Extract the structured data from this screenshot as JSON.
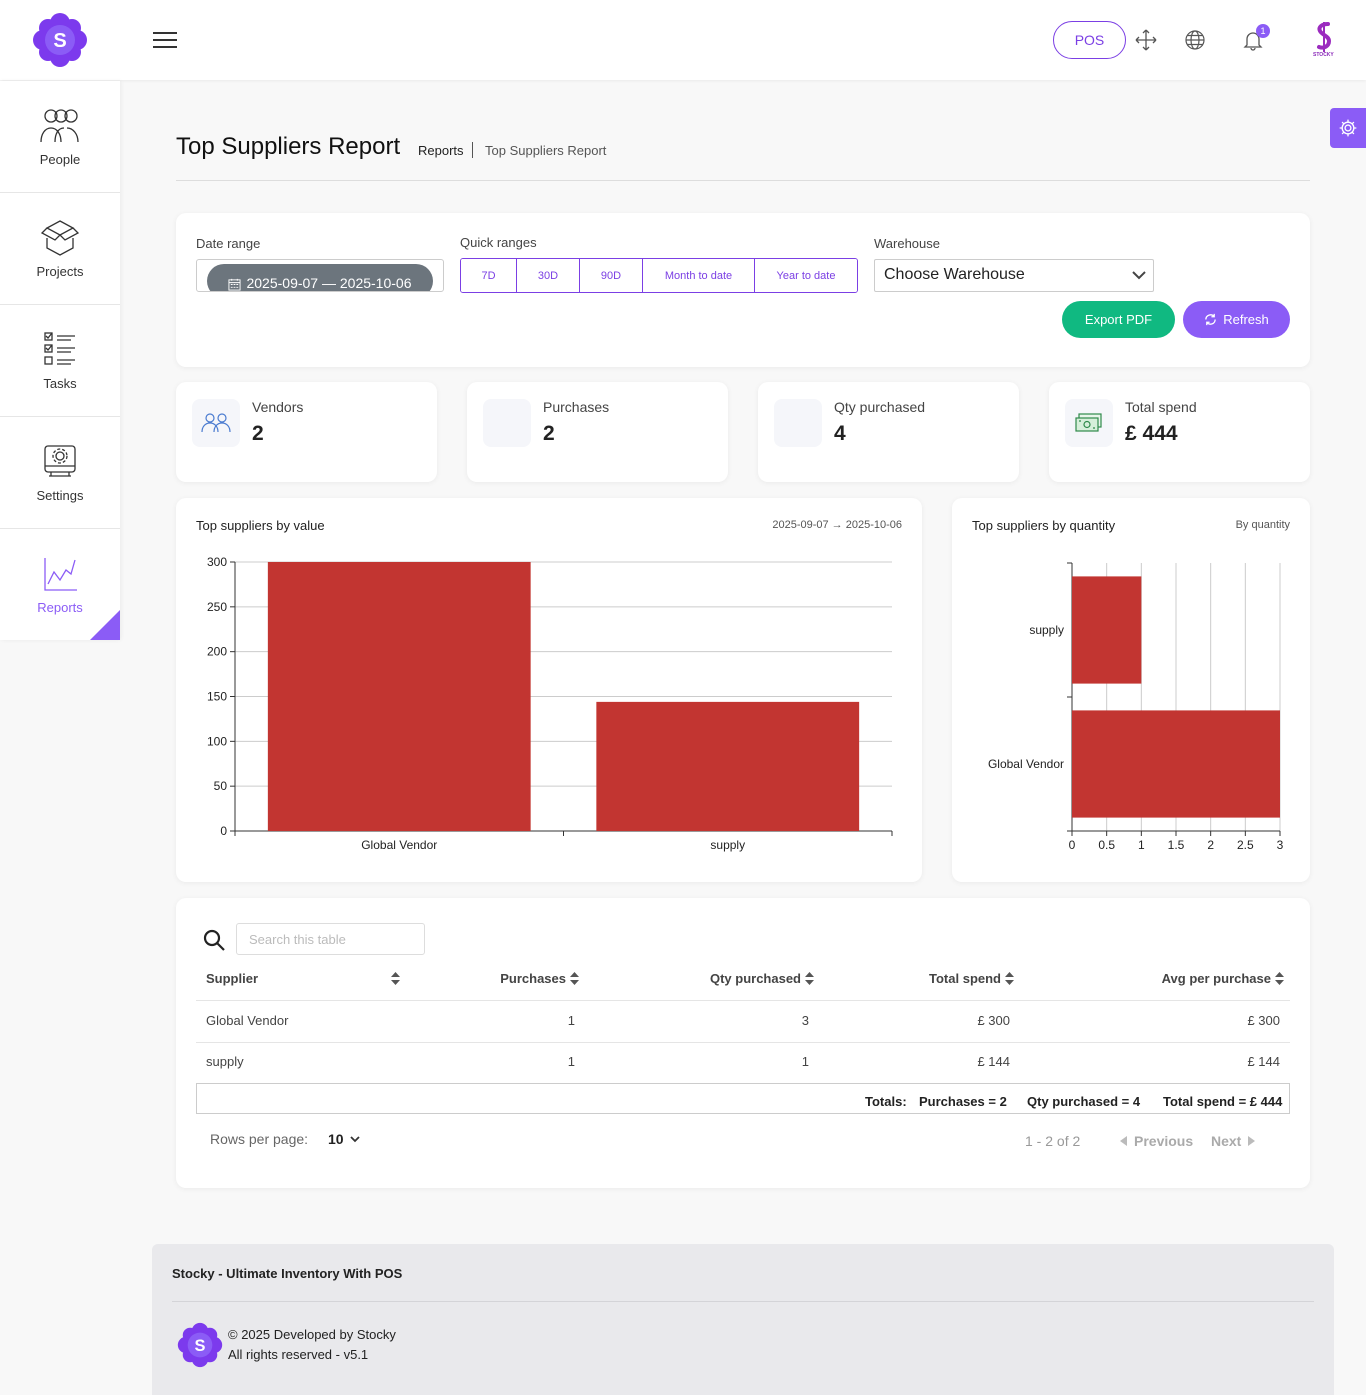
{
  "topbar": {
    "logo_letter": "S",
    "pos_label": "POS",
    "notification_count": "1",
    "avatar_brand": "STOCKY"
  },
  "sidebar": {
    "items": [
      {
        "label": "People",
        "icon": "people-icon"
      },
      {
        "label": "Projects",
        "icon": "projects-icon"
      },
      {
        "label": "Tasks",
        "icon": "tasks-icon"
      },
      {
        "label": "Settings",
        "icon": "settings-icon"
      },
      {
        "label": "Reports",
        "icon": "reports-icon",
        "active": true
      }
    ]
  },
  "header": {
    "title": "Top Suppliers Report",
    "breadcrumb_parent": "Reports",
    "breadcrumb_current": "Top Suppliers Report"
  },
  "filters": {
    "date_range_label": "Date range",
    "date_range_value": "2025-09-07 — 2025-10-06",
    "quick_ranges_label": "Quick ranges",
    "quick_ranges": [
      "7D",
      "30D",
      "90D",
      "Month to date",
      "Year to date"
    ],
    "warehouse_label": "Warehouse",
    "warehouse_value": "Choose Warehouse",
    "export_label": "Export PDF",
    "refresh_label": "Refresh"
  },
  "kpis": [
    {
      "label": "Vendors",
      "value": "2",
      "icon": "vendors-icon"
    },
    {
      "label": "Purchases",
      "value": "2",
      "icon": "purchases-icon"
    },
    {
      "label": "Qty purchased",
      "value": "4",
      "icon": "qty-icon"
    },
    {
      "label": "Total spend",
      "value": "£ 444",
      "icon": "money-icon"
    }
  ],
  "charts": {
    "value_title": "Top suppliers by value",
    "value_range": "2025-09-07 → 2025-10-06",
    "qty_title": "Top suppliers by quantity",
    "qty_sub": "By quantity"
  },
  "chart_data": [
    {
      "type": "bar",
      "title": "Top suppliers by value",
      "categories": [
        "Global Vendor",
        "supply"
      ],
      "values": [
        300,
        144
      ],
      "ylim": [
        0,
        300
      ],
      "yticks": [
        0,
        50,
        100,
        150,
        200,
        250,
        300
      ],
      "grid": true,
      "color": "#c23531"
    },
    {
      "type": "bar",
      "orientation": "horizontal",
      "title": "Top suppliers by quantity",
      "categories": [
        "Global Vendor",
        "supply"
      ],
      "values": [
        3,
        1
      ],
      "xlim": [
        0,
        3
      ],
      "xticks": [
        0,
        0.5,
        1,
        1.5,
        2,
        2.5,
        3
      ],
      "grid": true,
      "color": "#c23531"
    }
  ],
  "table": {
    "search_placeholder": "Search this table",
    "columns": [
      "Supplier",
      "Purchases",
      "Qty purchased",
      "Total spend",
      "Avg per purchase"
    ],
    "rows": [
      [
        "Global Vendor",
        "1",
        "3",
        "£ 300",
        "£ 300"
      ],
      [
        "supply",
        "1",
        "1",
        "£ 144",
        "£ 144"
      ]
    ],
    "totals_label": "Totals:",
    "totals": [
      "Purchases = 2",
      "Qty purchased = 4",
      "Total spend = £ 444"
    ],
    "rows_per_page_label": "Rows per page:",
    "rows_per_page": "10",
    "page_info": "1 - 2 of 2",
    "prev_label": "Previous",
    "next_label": "Next"
  },
  "footer": {
    "title": "Stocky - Ultimate Inventory With POS",
    "copyright": "© 2025 Developed by Stocky",
    "rights": "All rights reserved - v5.1"
  },
  "colors": {
    "accent": "#8b5cf6",
    "success": "#10b981",
    "bar": "#c23531"
  }
}
